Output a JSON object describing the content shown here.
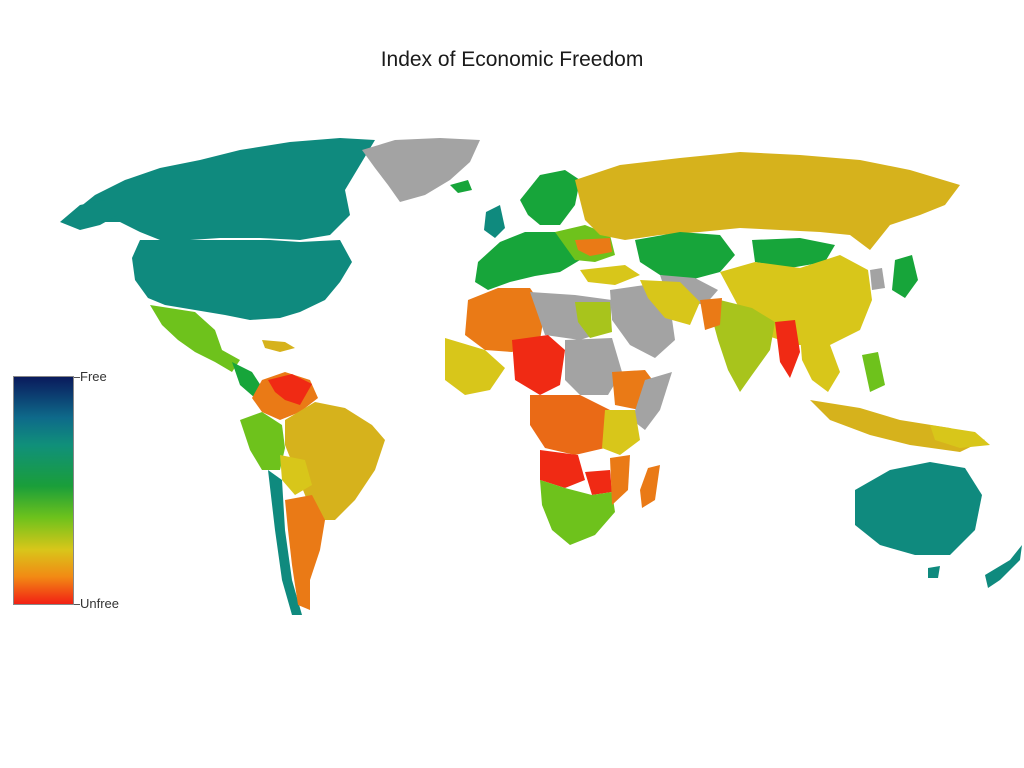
{
  "title": "Index of Economic Freedom",
  "legend": {
    "top_label": "Free",
    "bottom_label": "Unfree"
  },
  "colors": {
    "free_high": "#0f8a7e",
    "free": "#17a53a",
    "mostly_free": "#6ec21c",
    "moderate": "#d6b21c",
    "mostly_unfree": "#ea7a16",
    "repressed": "#f02a14",
    "no_data": "#a3a3a3"
  }
}
